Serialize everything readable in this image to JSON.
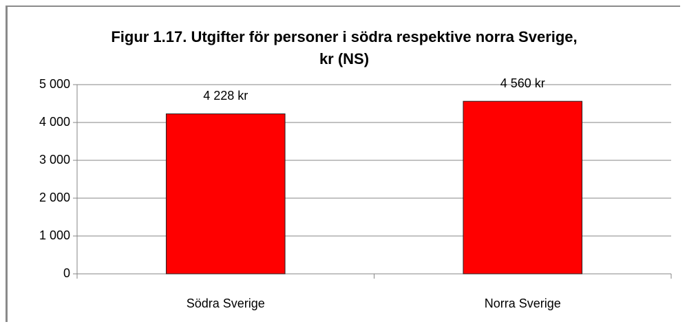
{
  "chart_data": {
    "type": "bar",
    "title": "Figur 1.17. Utgifter för personer i södra respektive norra Sverige, kr (NS)",
    "categories": [
      "Södra Sverige",
      "Norra Sverige"
    ],
    "values": [
      4228,
      4560
    ],
    "value_labels": [
      "4 228 kr",
      "4 560 kr"
    ],
    "color": "#ff0000",
    "ylim": [
      0,
      5000
    ],
    "yticks": [
      0,
      {
        "value": 1000,
        "label": "1 000"
      },
      {
        "value": 2000,
        "label": "2 000"
      },
      {
        "value": 3000,
        "label": "3 000"
      },
      {
        "value": 4000,
        "label": "4 000"
      },
      {
        "value": 5000,
        "label": "5 000"
      }
    ],
    "grid": true
  }
}
